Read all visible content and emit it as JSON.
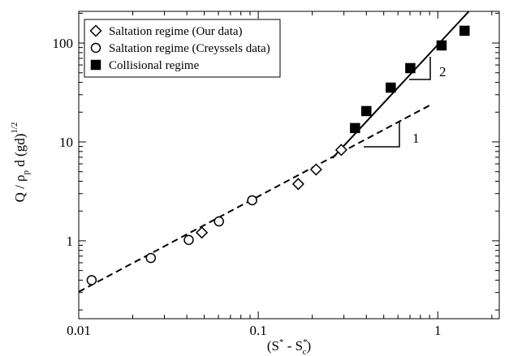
{
  "chart_data": {
    "type": "scatter",
    "xlabel": [
      "(S",
      "*",
      " - S",
      "*",
      "c",
      ")"
    ],
    "ylabel": [
      "Q / ρ",
      "p",
      " d (gd)",
      "1/2"
    ],
    "xscale": "log",
    "yscale": "log",
    "xlim": [
      0.01,
      2.2
    ],
    "ylim": [
      0.163,
      209
    ],
    "xticks": [
      0.01,
      0.1,
      1
    ],
    "xminorticks": [
      0.02,
      0.03,
      0.04,
      0.05,
      0.06,
      0.07,
      0.08,
      0.09,
      0.2,
      0.3,
      0.4,
      0.5,
      0.6,
      0.7,
      0.8,
      0.9,
      2
    ],
    "yticks": [
      1,
      10,
      100
    ],
    "yminorticks": [
      0.2,
      0.3,
      0.4,
      0.5,
      0.6,
      0.7,
      0.8,
      0.9,
      2,
      3,
      4,
      5,
      6,
      7,
      8,
      9,
      20,
      30,
      40,
      50,
      60,
      70,
      80,
      90,
      200
    ],
    "legend": "upper left",
    "series": [
      {
        "name": "Saltation regime (Our data)",
        "marker": "diamond",
        "filled": false,
        "color": "#000000",
        "x": [
          0.0485,
          0.167,
          0.21,
          0.29
        ],
        "values": [
          1.21,
          3.75,
          5.26,
          8.3
        ]
      },
      {
        "name": "Saltation regime (Creyssels data)",
        "marker": "circle",
        "filled": false,
        "color": "#000000",
        "x": [
          0.0118,
          0.0252,
          0.041,
          0.0604,
          0.0925
        ],
        "values": [
          0.4,
          0.67,
          1.02,
          1.57,
          2.57
        ]
      },
      {
        "name": "Collisional regime",
        "marker": "square",
        "filled": true,
        "color": "#000000",
        "x": [
          0.346,
          0.4,
          0.547,
          0.703,
          1.05,
          1.41
        ],
        "values": [
          13.8,
          20.5,
          35.4,
          55.7,
          94.5,
          133
        ]
      }
    ],
    "fits": [
      {
        "style": "dashed",
        "color": "#000000",
        "x": [
          0.01,
          0.9
        ],
        "values": [
          0.305,
          23.4
        ]
      },
      {
        "style": "solid",
        "color": "#000000",
        "x": [
          0.259,
          1.49
        ],
        "values": [
          6.86,
          209
        ]
      }
    ],
    "annotations": [
      "1",
      "2"
    ]
  }
}
